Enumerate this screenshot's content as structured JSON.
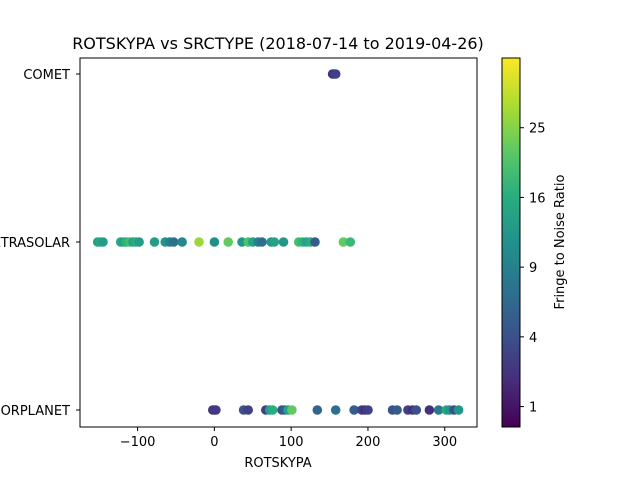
{
  "chart_data": {
    "type": "scatter",
    "title": "ROTSKYPA vs SRCTYPE (2018-07-14 to 2019-04-26)",
    "xlabel": "ROTSKYPA",
    "ylabel": "",
    "xlim": [
      -175,
      342
    ],
    "x_ticks": [
      {
        "value": -100,
        "label": "−100"
      },
      {
        "value": 0,
        "label": "0"
      },
      {
        "value": 100,
        "label": "100"
      },
      {
        "value": 200,
        "label": "200"
      },
      {
        "value": 300,
        "label": "300"
      }
    ],
    "categories": [
      "MAJORPLANET",
      "EXTRASOLAR",
      "COMET"
    ],
    "category_labels": [
      "MAJORPLANET",
      "EXTRASOLAR",
      "COMET"
    ],
    "grid": false,
    "colorbar": {
      "label": "Fringe to Noise Ratio",
      "colormap": "viridis",
      "scale": "sqrt",
      "range": [
        0.5,
        36
      ],
      "ticks": [
        {
          "value": 1,
          "label": "1"
        },
        {
          "value": 4,
          "label": "4"
        },
        {
          "value": 9,
          "label": "9"
        },
        {
          "value": 16,
          "label": "16"
        },
        {
          "value": 25,
          "label": "25"
        }
      ]
    },
    "points": [
      {
        "x": 154,
        "y": "COMET",
        "c": 2
      },
      {
        "x": 156,
        "y": "COMET",
        "c": 2.5
      },
      {
        "x": 158,
        "y": "COMET",
        "c": 3
      },
      {
        "x": -152,
        "y": "EXTRASOLAR",
        "c": 14
      },
      {
        "x": -148,
        "y": "EXTRASOLAR",
        "c": 15
      },
      {
        "x": -145,
        "y": "EXTRASOLAR",
        "c": 13
      },
      {
        "x": -122,
        "y": "EXTRASOLAR",
        "c": 15
      },
      {
        "x": -118,
        "y": "EXTRASOLAR",
        "c": 13
      },
      {
        "x": -115,
        "y": "EXTRASOLAR",
        "c": 17
      },
      {
        "x": -110,
        "y": "EXTRASOLAR",
        "c": 19
      },
      {
        "x": -106,
        "y": "EXTRASOLAR",
        "c": 14
      },
      {
        "x": -102,
        "y": "EXTRASOLAR",
        "c": 16
      },
      {
        "x": -98,
        "y": "EXTRASOLAR",
        "c": 13
      },
      {
        "x": -78,
        "y": "EXTRASOLAR",
        "c": 13
      },
      {
        "x": -64,
        "y": "EXTRASOLAR",
        "c": 12
      },
      {
        "x": -58,
        "y": "EXTRASOLAR",
        "c": 9
      },
      {
        "x": -53,
        "y": "EXTRASOLAR",
        "c": 7
      },
      {
        "x": -42,
        "y": "EXTRASOLAR",
        "c": 10
      },
      {
        "x": -20,
        "y": "EXTRASOLAR",
        "c": 27
      },
      {
        "x": 0,
        "y": "EXTRASOLAR",
        "c": 11
      },
      {
        "x": 18,
        "y": "EXTRASOLAR",
        "c": 22
      },
      {
        "x": 36,
        "y": "EXTRASOLAR",
        "c": 12
      },
      {
        "x": 44,
        "y": "EXTRASOLAR",
        "c": 20
      },
      {
        "x": 50,
        "y": "EXTRASOLAR",
        "c": 14
      },
      {
        "x": 57,
        "y": "EXTRASOLAR",
        "c": 9
      },
      {
        "x": 62,
        "y": "EXTRASOLAR",
        "c": 7
      },
      {
        "x": 74,
        "y": "EXTRASOLAR",
        "c": 12
      },
      {
        "x": 78,
        "y": "EXTRASOLAR",
        "c": 14
      },
      {
        "x": 90,
        "y": "EXTRASOLAR",
        "c": 12
      },
      {
        "x": 110,
        "y": "EXTRASOLAR",
        "c": 19
      },
      {
        "x": 115,
        "y": "EXTRASOLAR",
        "c": 17
      },
      {
        "x": 120,
        "y": "EXTRASOLAR",
        "c": 14
      },
      {
        "x": 125,
        "y": "EXTRASOLAR",
        "c": 16
      },
      {
        "x": 131,
        "y": "EXTRASOLAR",
        "c": 5
      },
      {
        "x": 168,
        "y": "EXTRASOLAR",
        "c": 22
      },
      {
        "x": 177,
        "y": "EXTRASOLAR",
        "c": 18
      },
      {
        "x": -2,
        "y": "MAJORPLANET",
        "c": 2
      },
      {
        "x": 0,
        "y": "MAJORPLANET",
        "c": 3
      },
      {
        "x": 2,
        "y": "MAJORPLANET",
        "c": 2.5
      },
      {
        "x": 38,
        "y": "MAJORPLANET",
        "c": 4
      },
      {
        "x": 44,
        "y": "MAJORPLANET",
        "c": 3
      },
      {
        "x": 67,
        "y": "MAJORPLANET",
        "c": 3
      },
      {
        "x": 72,
        "y": "MAJORPLANET",
        "c": 13
      },
      {
        "x": 76,
        "y": "MAJORPLANET",
        "c": 16
      },
      {
        "x": 88,
        "y": "MAJORPLANET",
        "c": 4
      },
      {
        "x": 92,
        "y": "MAJORPLANET",
        "c": 5
      },
      {
        "x": 96,
        "y": "MAJORPLANET",
        "c": 14
      },
      {
        "x": 101,
        "y": "MAJORPLANET",
        "c": 22
      },
      {
        "x": 134,
        "y": "MAJORPLANET",
        "c": 6
      },
      {
        "x": 158,
        "y": "MAJORPLANET",
        "c": 7
      },
      {
        "x": 182,
        "y": "MAJORPLANET",
        "c": 5
      },
      {
        "x": 192,
        "y": "MAJORPLANET",
        "c": 3
      },
      {
        "x": 196,
        "y": "MAJORPLANET",
        "c": 2
      },
      {
        "x": 200,
        "y": "MAJORPLANET",
        "c": 3
      },
      {
        "x": 232,
        "y": "MAJORPLANET",
        "c": 4
      },
      {
        "x": 238,
        "y": "MAJORPLANET",
        "c": 5
      },
      {
        "x": 252,
        "y": "MAJORPLANET",
        "c": 3
      },
      {
        "x": 258,
        "y": "MAJORPLANET",
        "c": 2
      },
      {
        "x": 263,
        "y": "MAJORPLANET",
        "c": 4
      },
      {
        "x": 280,
        "y": "MAJORPLANET",
        "c": 2
      },
      {
        "x": 292,
        "y": "MAJORPLANET",
        "c": 8
      },
      {
        "x": 302,
        "y": "MAJORPLANET",
        "c": 15
      },
      {
        "x": 306,
        "y": "MAJORPLANET",
        "c": 12
      },
      {
        "x": 312,
        "y": "MAJORPLANET",
        "c": 4
      },
      {
        "x": 318,
        "y": "MAJORPLANET",
        "c": 12
      }
    ]
  }
}
